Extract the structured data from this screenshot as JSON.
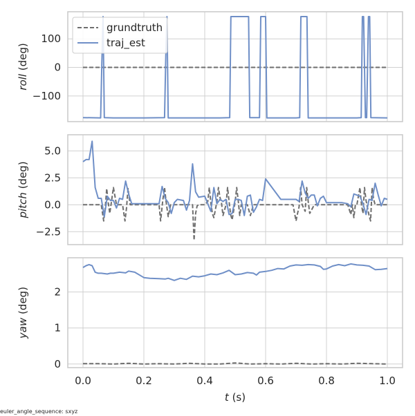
{
  "chart_data": {
    "type": "line",
    "xlabel_var": "t",
    "xlabel_unit": " (s)",
    "xlim": [
      -0.05,
      1.05
    ],
    "xticks": [
      "0.0",
      "0.2",
      "0.4",
      "0.6",
      "0.8",
      "1.0"
    ],
    "xtick_values": [
      0,
      0.2,
      0.4,
      0.6,
      0.8,
      1.0
    ],
    "grid": true,
    "legend": {
      "placement": "upper-left",
      "entries": [
        "grundtruth",
        "traj_est"
      ]
    },
    "footnote": "euler_angle_sequence: sxyz",
    "colors": {
      "grundtruth": "#6e6e6e",
      "traj_est": "#6f8fc7",
      "grid": "#d0d0d0",
      "frame": "#c8c8c8"
    },
    "panels": [
      {
        "ylabel_var": "roll",
        "ylabel_unit": " (deg)",
        "ylim": [
          -190,
          195
        ],
        "yticks": [
          "100",
          "0",
          "−100"
        ],
        "ytick_values": [
          100,
          0,
          -100
        ],
        "series": [
          {
            "name": "grundtruth",
            "style": "dashed",
            "x": [
              0,
              0.1,
              0.2,
              0.3,
              0.4,
              0.5,
              0.6,
              0.7,
              0.8,
              0.9,
              1.0
            ],
            "y": [
              0,
              0,
              0,
              0,
              0,
              0,
              0,
              0,
              0,
              0,
              0
            ]
          },
          {
            "name": "traj_est",
            "style": "solid",
            "x": [
              0.0,
              0.058,
              0.062,
              0.066,
              0.07,
              0.1,
              0.2,
              0.268,
              0.272,
              0.276,
              0.28,
              0.45,
              0.482,
              0.486,
              0.49,
              0.54,
              0.544,
              0.548,
              0.58,
              0.584,
              0.588,
              0.596,
              0.6,
              0.604,
              0.7,
              0.712,
              0.716,
              0.72,
              0.732,
              0.736,
              0.74,
              0.9,
              0.914,
              0.918,
              0.922,
              0.928,
              0.932,
              0.938,
              0.942,
              0.946,
              1.0
            ],
            "y": [
              -176,
              -177,
              20,
              178,
              -176,
              -177,
              -177,
              -176,
              40,
              178,
              -177,
              -177,
              -176,
              178,
              178,
              178,
              178,
              -176,
              -176,
              178,
              178,
              178,
              178,
              -177,
              -177,
              -176,
              178,
              178,
              178,
              178,
              -177,
              -177,
              -176,
              178,
              178,
              -176,
              -176,
              178,
              178,
              -176,
              -177
            ]
          }
        ]
      },
      {
        "ylabel_var": "pitch",
        "ylabel_unit": " (deg)",
        "ylim": [
          -3.7,
          6.5
        ],
        "yticks": [
          "5.0",
          "2.5",
          "0.0",
          "−2.5"
        ],
        "ytick_values": [
          5.0,
          2.5,
          0.0,
          -2.5
        ],
        "series": [
          {
            "name": "grundtruth",
            "style": "dashed",
            "x": [
              0.0,
              0.06,
              0.068,
              0.073,
              0.078,
              0.083,
              0.088,
              0.092,
              0.1,
              0.11,
              0.13,
              0.138,
              0.143,
              0.148,
              0.155,
              0.16,
              0.25,
              0.255,
              0.262,
              0.268,
              0.273,
              0.28,
              0.288,
              0.3,
              0.33,
              0.36,
              0.365,
              0.37,
              0.375,
              0.38,
              0.4,
              0.41,
              0.415,
              0.42,
              0.425,
              0.43,
              0.44,
              0.445,
              0.45,
              0.455,
              0.46,
              0.47,
              0.475,
              0.48,
              0.485,
              0.49,
              0.5,
              0.505,
              0.51,
              0.515,
              0.52,
              0.53,
              0.54,
              0.55,
              0.56,
              0.57,
              0.69,
              0.7,
              0.705,
              0.71,
              0.715,
              0.72,
              0.73,
              0.735,
              0.74,
              0.745,
              0.76,
              0.76,
              0.87,
              0.88,
              0.885,
              0.89,
              0.895,
              0.9,
              0.91,
              0.915,
              0.92,
              0.925,
              0.93,
              0.94,
              0.945,
              0.95,
              0.955,
              0.96,
              1.0
            ],
            "y": [
              0,
              0,
              -1.5,
              -0.3,
              1.5,
              0.2,
              -0.8,
              0,
              1.6,
              0,
              0,
              -1.5,
              -0.3,
              1.5,
              0,
              0,
              0,
              -1.5,
              0.4,
              1.6,
              0.3,
              -1.1,
              0,
              0,
              0,
              0,
              -3.3,
              -0.8,
              -0.1,
              0,
              0,
              0.3,
              1.6,
              0.2,
              -0.8,
              -1.2,
              0.3,
              1.6,
              0.7,
              0.2,
              -1,
              0,
              1.6,
              0.3,
              -0.9,
              -1.4,
              0.3,
              1.6,
              0.4,
              -1.0,
              0,
              0,
              0,
              -1,
              0,
              0,
              0,
              -1.5,
              -0.8,
              -0.2,
              1.6,
              0,
              -0.6,
              1.6,
              0.3,
              -0.8,
              0,
              0,
              0,
              -0.9,
              0,
              -1.2,
              0,
              0,
              1.6,
              0,
              -0.8,
              1.6,
              0.4,
              -1.0,
              -1.5,
              1.6,
              0.5,
              0,
              0
            ]
          },
          {
            "name": "traj_est",
            "style": "solid",
            "x": [
              0.0,
              0.01,
              0.02,
              0.03,
              0.04,
              0.05,
              0.06,
              0.07,
              0.08,
              0.09,
              0.1,
              0.11,
              0.12,
              0.13,
              0.14,
              0.15,
              0.16,
              0.2,
              0.25,
              0.26,
              0.27,
              0.28,
              0.29,
              0.3,
              0.31,
              0.33,
              0.34,
              0.35,
              0.36,
              0.37,
              0.38,
              0.4,
              0.42,
              0.43,
              0.44,
              0.45,
              0.46,
              0.47,
              0.48,
              0.49,
              0.5,
              0.51,
              0.52,
              0.53,
              0.54,
              0.55,
              0.56,
              0.57,
              0.58,
              0.59,
              0.6,
              0.65,
              0.7,
              0.71,
              0.72,
              0.73,
              0.74,
              0.75,
              0.76,
              0.77,
              0.78,
              0.79,
              0.8,
              0.85,
              0.87,
              0.88,
              0.89,
              0.9,
              0.91,
              0.92,
              0.93,
              0.94,
              0.95,
              0.96,
              0.97,
              0.98,
              0.99,
              1.0
            ],
            "y": [
              4.0,
              4.2,
              4.2,
              5.9,
              1.6,
              0.6,
              0.6,
              -1.1,
              0.8,
              0.4,
              0.4,
              -0.3,
              0.6,
              0.5,
              2.2,
              1.0,
              0.1,
              0.1,
              0.1,
              1.7,
              0.6,
              0.2,
              -0.8,
              0.2,
              0.5,
              0.4,
              -0.5,
              0.4,
              3.8,
              1.2,
              0.7,
              0.8,
              -0.6,
              1.6,
              0.1,
              0.5,
              0.3,
              0.5,
              -0.9,
              -0.8,
              0.5,
              0.5,
              0.4,
              -1.0,
              0.8,
              0.9,
              -0.7,
              -0.2,
              0.5,
              0.4,
              2.4,
              0.5,
              0.5,
              0.3,
              2.2,
              1.1,
              0.6,
              0.9,
              0.9,
              -0.1,
              0.6,
              0.8,
              0.2,
              0.2,
              0.1,
              -0.2,
              1.0,
              0.9,
              0.8,
              0.1,
              -0.9,
              0.5,
              0.4,
              2.0,
              0.9,
              -0.1,
              0.6,
              0.5
            ]
          }
        ]
      },
      {
        "ylabel_var": "yaw",
        "ylabel_unit": " (deg)",
        "ylim": [
          -0.1,
          2.95
        ],
        "yticks": [
          "2",
          "1",
          "0"
        ],
        "ytick_values": [
          2,
          1,
          0
        ],
        "series": [
          {
            "name": "grundtruth",
            "style": "dashed",
            "x": [
              0.0,
              0.05,
              0.1,
              0.15,
              0.2,
              0.25,
              0.3,
              0.35,
              0.4,
              0.45,
              0.5,
              0.55,
              0.6,
              0.65,
              0.7,
              0.75,
              0.8,
              0.85,
              0.9,
              0.95,
              1.0
            ],
            "y": [
              0.01,
              0.01,
              0.0,
              0.02,
              0.0,
              0.01,
              0.0,
              0.02,
              0.0,
              0.0,
              0.03,
              0.0,
              0.01,
              0.0,
              0.02,
              0.0,
              0.01,
              0.0,
              0.02,
              0.01,
              0.0
            ]
          },
          {
            "name": "traj_est",
            "style": "solid",
            "x": [
              0.0,
              0.01,
              0.02,
              0.03,
              0.04,
              0.05,
              0.06,
              0.08,
              0.09,
              0.1,
              0.12,
              0.14,
              0.15,
              0.17,
              0.2,
              0.22,
              0.25,
              0.27,
              0.28,
              0.3,
              0.32,
              0.34,
              0.36,
              0.38,
              0.4,
              0.42,
              0.44,
              0.46,
              0.48,
              0.5,
              0.52,
              0.54,
              0.56,
              0.57,
              0.58,
              0.6,
              0.62,
              0.64,
              0.66,
              0.68,
              0.7,
              0.72,
              0.74,
              0.76,
              0.78,
              0.79,
              0.8,
              0.82,
              0.84,
              0.86,
              0.88,
              0.9,
              0.92,
              0.94,
              0.96,
              0.98,
              1.0
            ],
            "y": [
              2.68,
              2.73,
              2.76,
              2.73,
              2.55,
              2.52,
              2.52,
              2.5,
              2.52,
              2.52,
              2.55,
              2.53,
              2.58,
              2.55,
              2.4,
              2.38,
              2.37,
              2.36,
              2.38,
              2.32,
              2.38,
              2.35,
              2.44,
              2.42,
              2.45,
              2.5,
              2.48,
              2.53,
              2.6,
              2.48,
              2.5,
              2.54,
              2.52,
              2.47,
              2.55,
              2.57,
              2.6,
              2.65,
              2.64,
              2.72,
              2.75,
              2.74,
              2.76,
              2.75,
              2.71,
              2.63,
              2.64,
              2.72,
              2.76,
              2.73,
              2.78,
              2.75,
              2.74,
              2.72,
              2.62,
              2.63,
              2.65
            ]
          }
        ]
      }
    ]
  }
}
